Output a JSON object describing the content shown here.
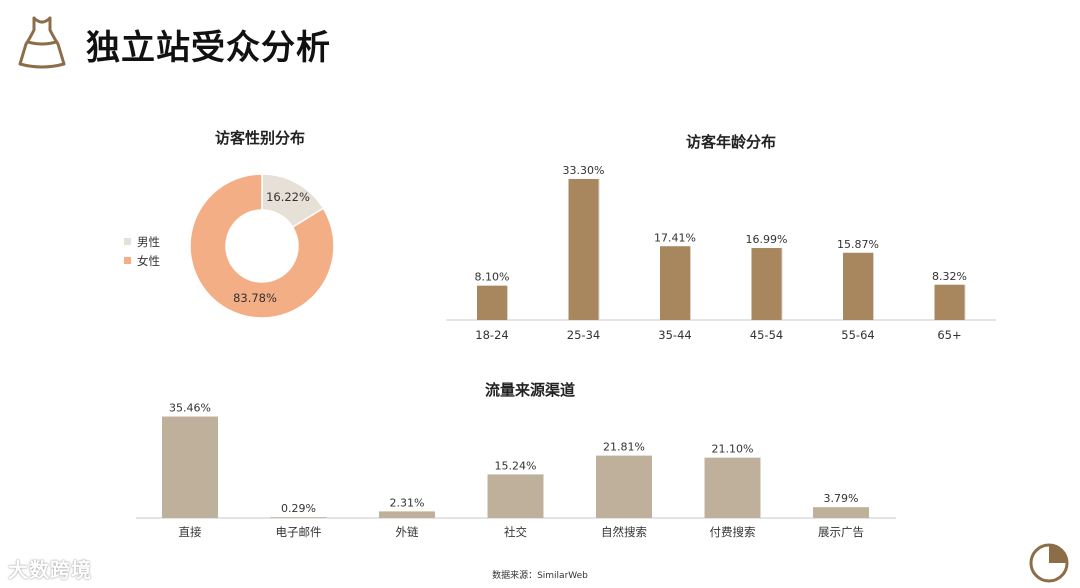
{
  "page": {
    "title": "独立站受众分析",
    "source": "数据来源：SimilarWeb",
    "watermark": "大数跨境"
  },
  "colors": {
    "gender_male": "#e6e0d7",
    "gender_female": "#f4ae85",
    "age_bar": "#a8875e",
    "traffic_bar": "#bfb09b",
    "axis": "#c8c8c8",
    "icon": "#8c6d48"
  },
  "icons": {
    "header": "dress-icon",
    "footer": "pie-chart-icon"
  },
  "chart_data": [
    {
      "type": "pie",
      "title": "访客性别分布",
      "legend_position": "left",
      "slices": [
        {
          "label": "男性",
          "value": 16.22,
          "value_label": "16.22%"
        },
        {
          "label": "女性",
          "value": 83.78,
          "value_label": "83.78%"
        }
      ]
    },
    {
      "type": "bar",
      "title": "访客年龄分布",
      "categories": [
        "18-24",
        "25-34",
        "35-44",
        "45-54",
        "55-64",
        "65+"
      ],
      "values": [
        8.1,
        33.3,
        17.41,
        16.99,
        15.87,
        8.32
      ],
      "value_labels": [
        "8.10%",
        "33.30%",
        "17.41%",
        "16.99%",
        "15.87%",
        "8.32%"
      ],
      "ylim": [
        0,
        34
      ],
      "grid": false
    },
    {
      "type": "bar",
      "title": "流量来源渠道",
      "categories": [
        "直接",
        "电子邮件",
        "外链",
        "社交",
        "自然搜索",
        "付费搜索",
        "展示广告"
      ],
      "values": [
        35.46,
        0.29,
        2.31,
        15.24,
        21.81,
        21.1,
        3.79
      ],
      "value_labels": [
        "35.46%",
        "0.29%",
        "2.31%",
        "15.24%",
        "21.81%",
        "21.10%",
        "3.79%"
      ],
      "ylim": [
        0,
        36
      ],
      "grid": false
    }
  ]
}
